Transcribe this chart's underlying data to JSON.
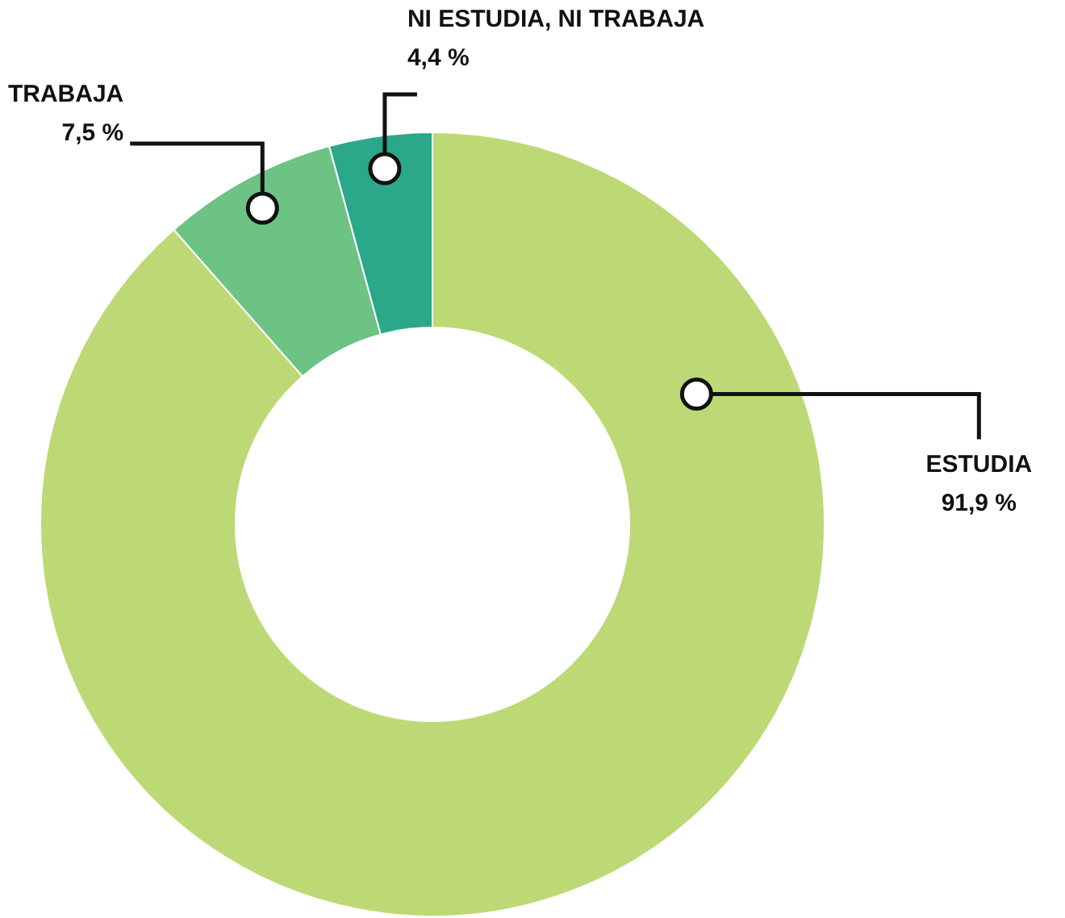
{
  "chart_data": {
    "type": "donut",
    "categories": [
      "ESTUDIA",
      "TRABAJA",
      "NI ESTUDIA, NI TRABAJA"
    ],
    "values": [
      91.9,
      7.5,
      4.4
    ],
    "colors": [
      "#bdd975",
      "#6cc384",
      "#2aa889"
    ],
    "value_labels": [
      "91,9 %",
      "7,5 %",
      "4,4 %"
    ]
  }
}
